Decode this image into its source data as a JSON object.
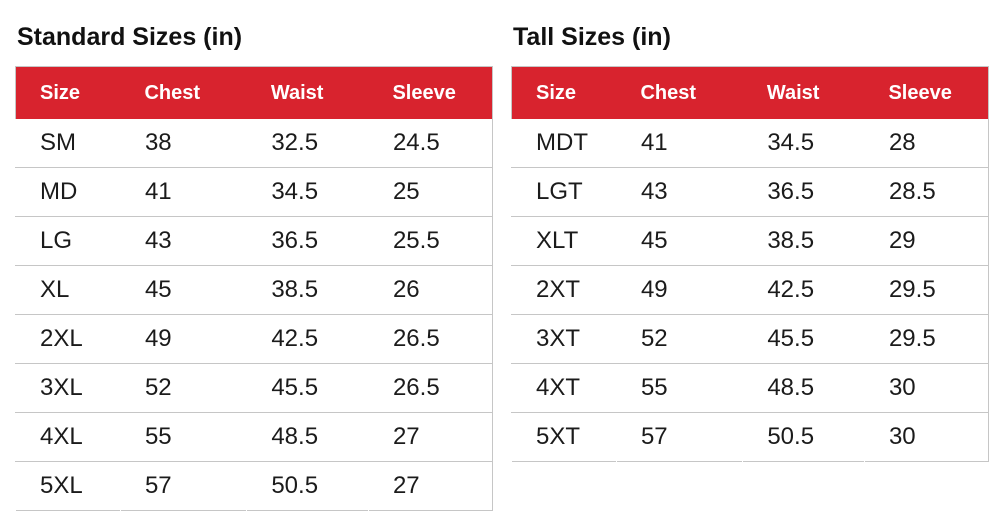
{
  "colors": {
    "header_background": "#d8232e",
    "header_text": "#ffffff",
    "body_text": "#1b1b1b",
    "title_text": "#111111",
    "border": "#c6c6c6",
    "page_background": "#ffffff"
  },
  "tables": [
    {
      "title": "Standard Sizes (in)",
      "headers": [
        "Size",
        "Chest",
        "Waist",
        "Sleeve"
      ],
      "rows": [
        [
          "SM",
          "38",
          "32.5",
          "24.5"
        ],
        [
          "MD",
          "41",
          "34.5",
          "25"
        ],
        [
          "LG",
          "43",
          "36.5",
          "25.5"
        ],
        [
          "XL",
          "45",
          "38.5",
          "26"
        ],
        [
          "2XL",
          "49",
          "42.5",
          "26.5"
        ],
        [
          "3XL",
          "52",
          "45.5",
          "26.5"
        ],
        [
          "4XL",
          "55",
          "48.5",
          "27"
        ],
        [
          "5XL",
          "57",
          "50.5",
          "27"
        ]
      ]
    },
    {
      "title": "Tall Sizes (in)",
      "headers": [
        "Size",
        "Chest",
        "Waist",
        "Sleeve"
      ],
      "rows": [
        [
          "MDT",
          "41",
          "34.5",
          "28"
        ],
        [
          "LGT",
          "43",
          "36.5",
          "28.5"
        ],
        [
          "XLT",
          "45",
          "38.5",
          "29"
        ],
        [
          "2XT",
          "49",
          "42.5",
          "29.5"
        ],
        [
          "3XT",
          "52",
          "45.5",
          "29.5"
        ],
        [
          "4XT",
          "55",
          "48.5",
          "30"
        ],
        [
          "5XT",
          "57",
          "50.5",
          "30"
        ]
      ]
    }
  ]
}
